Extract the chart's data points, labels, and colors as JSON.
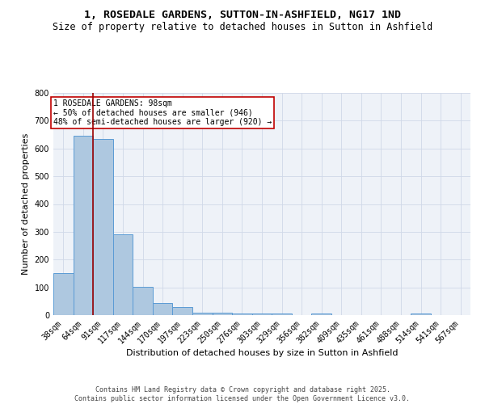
{
  "title": "1, ROSEDALE GARDENS, SUTTON-IN-ASHFIELD, NG17 1ND",
  "subtitle": "Size of property relative to detached houses in Sutton in Ashfield",
  "xlabel": "Distribution of detached houses by size in Sutton in Ashfield",
  "ylabel": "Number of detached properties",
  "bar_values": [
    150,
    645,
    635,
    290,
    103,
    45,
    30,
    10,
    8,
    6,
    6,
    6,
    0,
    5,
    0,
    0,
    0,
    0,
    5,
    0,
    0
  ],
  "bin_labels": [
    "38sqm",
    "64sqm",
    "91sqm",
    "117sqm",
    "144sqm",
    "170sqm",
    "197sqm",
    "223sqm",
    "250sqm",
    "276sqm",
    "303sqm",
    "329sqm",
    "356sqm",
    "382sqm",
    "409sqm",
    "435sqm",
    "461sqm",
    "488sqm",
    "514sqm",
    "541sqm",
    "567sqm"
  ],
  "bar_color": "#aec8e0",
  "bar_edge_color": "#5b9bd5",
  "grid_color": "#d0d8e8",
  "background_color": "#eef2f8",
  "vline_x_index": 2,
  "vline_color": "#9b0000",
  "annotation_text": "1 ROSEDALE GARDENS: 98sqm\n← 50% of detached houses are smaller (946)\n48% of semi-detached houses are larger (920) →",
  "annotation_box_color": "#ffffff",
  "annotation_box_edge": "#c00000",
  "ylim": [
    0,
    800
  ],
  "yticks": [
    0,
    100,
    200,
    300,
    400,
    500,
    600,
    700,
    800
  ],
  "footer": "Contains HM Land Registry data © Crown copyright and database right 2025.\nContains public sector information licensed under the Open Government Licence v3.0.",
  "title_fontsize": 9.5,
  "subtitle_fontsize": 8.5,
  "tick_fontsize": 7,
  "label_fontsize": 8,
  "footer_fontsize": 6,
  "annotation_fontsize": 7
}
